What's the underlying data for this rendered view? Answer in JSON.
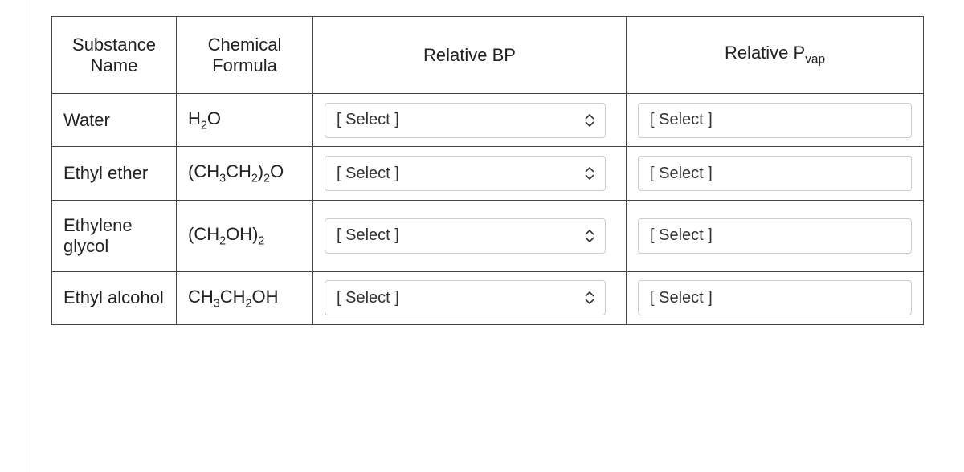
{
  "colors": {
    "border": "#444444",
    "selectBorder": "#cccccc",
    "text": "#222222",
    "placeholder": "#333333",
    "arrow": "#333333",
    "background": "#ffffff"
  },
  "table": {
    "headers": {
      "substance": "Substance Name",
      "formula": "Chemical Formula",
      "bp": "Relative BP",
      "pvap_prefix": "Relative P",
      "pvap_sub": "vap"
    },
    "rows": [
      {
        "name": "Water",
        "formula_parts": [
          {
            "t": "H"
          },
          {
            "sub": "2"
          },
          {
            "t": "O"
          }
        ],
        "bp_select": {
          "placeholder": "[ Select ]",
          "arrows": true,
          "bordered": true
        },
        "pvap_select": {
          "placeholder": "[ Select ]",
          "arrows": false,
          "bordered": true
        }
      },
      {
        "name": "Ethyl ether",
        "formula_parts": [
          {
            "t": "(CH"
          },
          {
            "sub": "3"
          },
          {
            "t": "CH"
          },
          {
            "sub": "2"
          },
          {
            "t": ")"
          },
          {
            "sub": "2"
          },
          {
            "t": "O"
          }
        ],
        "bp_select": {
          "placeholder": "[ Select ]",
          "arrows": true,
          "bordered": true
        },
        "pvap_select": {
          "placeholder": "[ Select ]",
          "arrows": false,
          "bordered": true
        }
      },
      {
        "name": "Ethylene glycol",
        "formula_parts": [
          {
            "t": "(CH"
          },
          {
            "sub": "2"
          },
          {
            "t": "OH)"
          },
          {
            "sub": "2"
          }
        ],
        "bp_select": {
          "placeholder": "[ Select ]",
          "arrows": true,
          "bordered": true
        },
        "pvap_select": {
          "placeholder": "[ Select ]",
          "arrows": false,
          "bordered": true
        }
      },
      {
        "name": "Ethyl alcohol",
        "formula_parts": [
          {
            "t": "CH"
          },
          {
            "sub": "3"
          },
          {
            "t": "CH"
          },
          {
            "sub": "2"
          },
          {
            "t": "OH"
          }
        ],
        "bp_select": {
          "placeholder": "[ Select ]",
          "arrows": true,
          "bordered": true
        },
        "pvap_select": {
          "placeholder": "[ Select ]",
          "arrows": false,
          "bordered": true
        }
      }
    ]
  }
}
